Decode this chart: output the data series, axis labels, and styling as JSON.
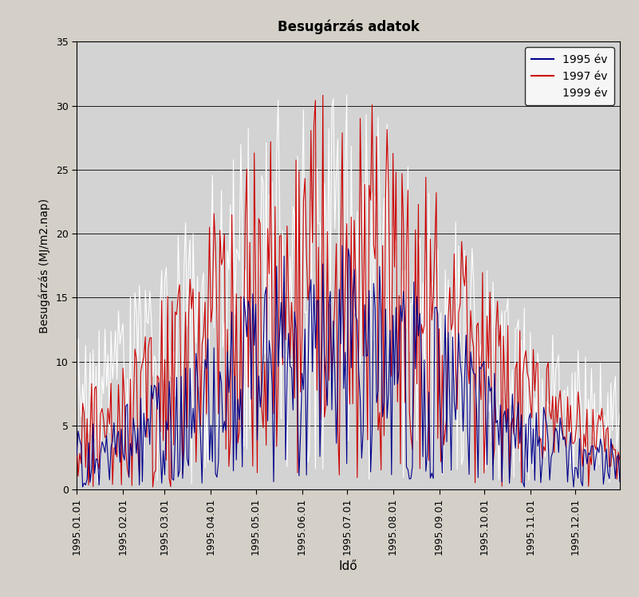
{
  "title": "Besugárzás adatok",
  "xlabel": "Idő",
  "ylabel": "Besugárzás (MJ/m2.nap)",
  "ylim": [
    0,
    35
  ],
  "yticks": [
    0,
    5,
    10,
    15,
    20,
    25,
    30,
    35
  ],
  "fig_bg_color": "#d4d0c8",
  "plot_bg_color": "#d3d3d3",
  "legend_labels": [
    "1995 év",
    "1997 év",
    "1999 év"
  ],
  "line_colors": [
    "#00008B",
    "#CC0000",
    "#FFFFFF"
  ],
  "line_width": 0.8,
  "xtick_labels": [
    "1995.01.01",
    "1995.02.01",
    "1995.03.01",
    "1995.04.01",
    "1995.05.01",
    "1995.06.01",
    "1995.07.01",
    "1995.08.01",
    "1995.09.01",
    "1995.10.01",
    "1995.11.01",
    "1995.12.01"
  ],
  "xtick_positions": [
    0,
    31,
    59,
    90,
    120,
    151,
    181,
    212,
    243,
    273,
    304,
    334
  ]
}
